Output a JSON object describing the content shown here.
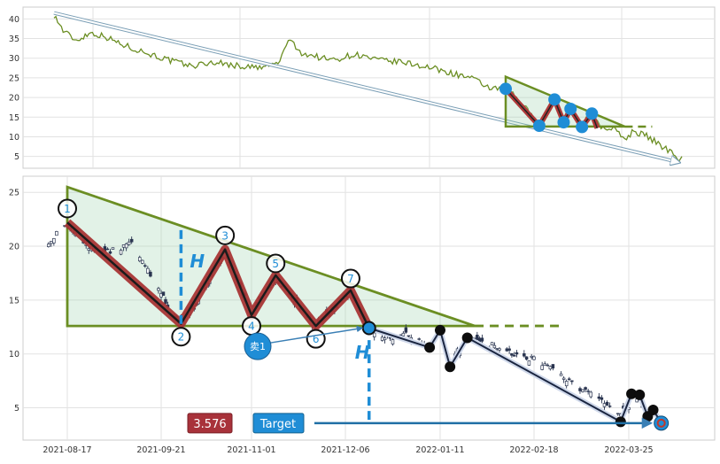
{
  "chart_data": [
    {
      "type": "line",
      "panel": "overview",
      "ylim": [
        2,
        43
      ],
      "y_ticks": [
        "5",
        "10",
        "15",
        "20",
        "25",
        "30",
        "35",
        "40"
      ],
      "grid": true,
      "series": [
        {
          "color": "#6b8e23",
          "points": [
            [
              "2020-01-03",
              41
            ],
            [
              "2020-01-15",
              37
            ],
            [
              "2020-02-01",
              34.5
            ],
            [
              "2020-02-20",
              36.5
            ],
            [
              "2020-03-10",
              35.5
            ],
            [
              "2020-04-01",
              33.5
            ],
            [
              "2020-05-01",
              31.5
            ],
            [
              "2020-06-01",
              29.5
            ],
            [
              "2020-07-01",
              28
            ],
            [
              "2020-08-01",
              29
            ],
            [
              "2020-09-01",
              28
            ],
            [
              "2020-10-01",
              27.5
            ],
            [
              "2020-10-25",
              29
            ],
            [
              "2020-11-05",
              35
            ],
            [
              "2020-11-20",
              31.5
            ],
            [
              "2020-12-10",
              30.5
            ],
            [
              "2021-01-01",
              29.5
            ],
            [
              "2021-02-01",
              31
            ],
            [
              "2021-03-01",
              29.5
            ],
            [
              "2021-04-01",
              29
            ],
            [
              "2021-05-01",
              28
            ],
            [
              "2021-06-01",
              26.5
            ],
            [
              "2021-07-01",
              25
            ],
            [
              "2021-08-01",
              22
            ],
            [
              "2021-08-17",
              22.5
            ],
            [
              "2021-09-05",
              19
            ],
            [
              "2021-09-30",
              13
            ],
            [
              "2021-10-20",
              19
            ],
            [
              "2021-11-01",
              14.5
            ],
            [
              "2021-11-10",
              17
            ],
            [
              "2021-11-25",
              13
            ],
            [
              "2021-12-08",
              16
            ],
            [
              "2021-12-20",
              12.5
            ],
            [
              "2022-01-05",
              12
            ],
            [
              "2022-01-20",
              9.5
            ],
            [
              "2022-02-01",
              11.5
            ],
            [
              "2022-02-20",
              10
            ],
            [
              "2022-03-10",
              7.5
            ],
            [
              "2022-03-25",
              6
            ],
            [
              "2022-04-01",
              4.5
            ],
            [
              "2022-04-05",
              5
            ]
          ]
        }
      ],
      "trend_arrow": {
        "from": [
          "2020-01-03",
          41.5
        ],
        "to": [
          "2022-04-01",
          3.5
        ]
      },
      "triangle": {
        "top": [
          "2021-08-17",
          25.3
        ],
        "bottom_left": [
          "2021-08-17",
          12.6
        ],
        "apex": [
          "2022-01-20",
          12.6
        ],
        "extension_to": "2022-02-25"
      },
      "pattern_path": [
        [
          "2021-08-17",
          22.2
        ],
        [
          "2021-09-30",
          12.8
        ],
        [
          "2021-10-20",
          19.5
        ],
        [
          "2021-11-01",
          13.7
        ],
        [
          "2021-11-10",
          17.1
        ],
        [
          "2021-11-25",
          12.5
        ],
        [
          "2021-12-08",
          15.9
        ],
        [
          "2021-12-15",
          12.2
        ]
      ],
      "markers": [
        [
          "2021-08-17",
          22.2
        ],
        [
          "2021-09-30",
          12.8
        ],
        [
          "2021-10-20",
          19.5
        ],
        [
          "2021-11-01",
          13.7
        ],
        [
          "2021-11-10",
          17.1
        ],
        [
          "2021-11-25",
          12.5
        ],
        [
          "2021-12-08",
          15.9
        ]
      ]
    },
    {
      "type": "candlestick",
      "panel": "detail",
      "ylim": [
        2,
        26.5
      ],
      "y_ticks": [
        "5",
        "10",
        "15",
        "20",
        "25"
      ],
      "x_ticks": [
        "2021-08-17",
        "2021-09-21",
        "2021-11-01",
        "2021-12-06",
        "2022-01-11",
        "2022-02-18",
        "2022-03-25"
      ],
      "grid": true,
      "anchor_points": [
        [
          "2021-08-10",
          20.5
        ],
        [
          "2021-08-17",
          22.2
        ],
        [
          "2021-08-25",
          20
        ],
        [
          "2021-09-02",
          19.5
        ],
        [
          "2021-09-10",
          20.3
        ],
        [
          "2021-09-17",
          17.5
        ],
        [
          "2021-09-24",
          14.5
        ],
        [
          "2021-09-30",
          12.8
        ],
        [
          "2021-10-08",
          15
        ],
        [
          "2021-10-14",
          17.5
        ],
        [
          "2021-10-20",
          19.5
        ],
        [
          "2021-10-27",
          16.5
        ],
        [
          "2021-11-01",
          13.7
        ],
        [
          "2021-11-05",
          15.5
        ],
        [
          "2021-11-10",
          17.1
        ],
        [
          "2021-11-17",
          15
        ],
        [
          "2021-11-25",
          12.5
        ],
        [
          "2021-12-01",
          14
        ],
        [
          "2021-12-08",
          15.9
        ],
        [
          "2021-12-15",
          12.3
        ],
        [
          "2021-12-22",
          11.5
        ],
        [
          "2021-12-30",
          11.8
        ],
        [
          "2022-01-07",
          10.8
        ],
        [
          "2022-01-11",
          12.2
        ],
        [
          "2022-01-15",
          9.2
        ],
        [
          "2022-01-22",
          11.5
        ],
        [
          "2022-02-01",
          10.8
        ],
        [
          "2022-02-10",
          10
        ],
        [
          "2022-02-18",
          9.5
        ],
        [
          "2022-02-25",
          8.6
        ],
        [
          "2022-03-05",
          7
        ],
        [
          "2022-03-15",
          5.8
        ],
        [
          "2022-03-22",
          4.6
        ],
        [
          "2022-03-28",
          5.8
        ],
        [
          "2022-04-01",
          4.5
        ],
        [
          "2022-04-06",
          3.6
        ]
      ],
      "triangle": {
        "top": [
          "2021-08-17",
          25.5
        ],
        "bottom_left": [
          "2021-08-17",
          12.6
        ],
        "apex": [
          "2022-01-25",
          12.6
        ],
        "extension_to": "2022-03-01"
      },
      "pattern_path": [
        [
          "2021-08-17",
          22.2
        ],
        [
          "2021-09-30",
          12.8
        ],
        [
          "2021-10-20",
          19.7
        ],
        [
          "2021-11-01",
          13.6
        ],
        [
          "2021-11-10",
          17.3
        ],
        [
          "2021-11-25",
          12.6
        ],
        [
          "2021-12-08",
          15.9
        ],
        [
          "2021-12-15",
          12.4
        ]
      ],
      "pivots": [
        {
          "label": "1",
          "date": "2021-08-17",
          "value": 22.2,
          "label_y": 23.5
        },
        {
          "label": "2",
          "date": "2021-09-30",
          "value": 12.8,
          "label_y": 11.6
        },
        {
          "label": "3",
          "date": "2021-10-20",
          "value": 19.7,
          "label_y": 21.0
        },
        {
          "label": "4",
          "date": "2021-11-01",
          "value": 13.6,
          "label_y": 12.6
        },
        {
          "label": "5",
          "date": "2021-11-10",
          "value": 17.3,
          "label_y": 18.4
        },
        {
          "label": "6",
          "date": "2021-11-25",
          "value": 12.6,
          "label_y": 11.4
        },
        {
          "label": "7",
          "date": "2021-12-08",
          "value": 15.9,
          "label_y": 17.0
        }
      ],
      "height_annotations": [
        {
          "label": "H",
          "date": "2021-09-30",
          "from": 21.5,
          "to": 12.6
        },
        {
          "label": "H",
          "date": "2021-12-15",
          "from": 12.6,
          "to": 3.6
        }
      ],
      "breakout": {
        "date": "2021-12-15",
        "value": 12.4
      },
      "sell_marker": {
        "label": "卖1",
        "date": "2021-11-01",
        "value": 10.7
      },
      "projection_path": [
        [
          "2021-12-15",
          12.4
        ],
        [
          "2022-01-07",
          10.6
        ],
        [
          "2022-01-11",
          12.2
        ],
        [
          "2022-01-15",
          8.8
        ],
        [
          "2022-01-22",
          11.5
        ],
        [
          "2022-03-22",
          3.7
        ],
        [
          "2022-03-26",
          6.3
        ],
        [
          "2022-03-29",
          6.2
        ],
        [
          "2022-04-01",
          4.2
        ],
        [
          "2022-04-03",
          4.8
        ],
        [
          "2022-04-06",
          3.6
        ]
      ],
      "target": {
        "label": "Target",
        "value_label": "3.576",
        "value": 3.576,
        "date": "2022-04-06"
      }
    }
  ]
}
